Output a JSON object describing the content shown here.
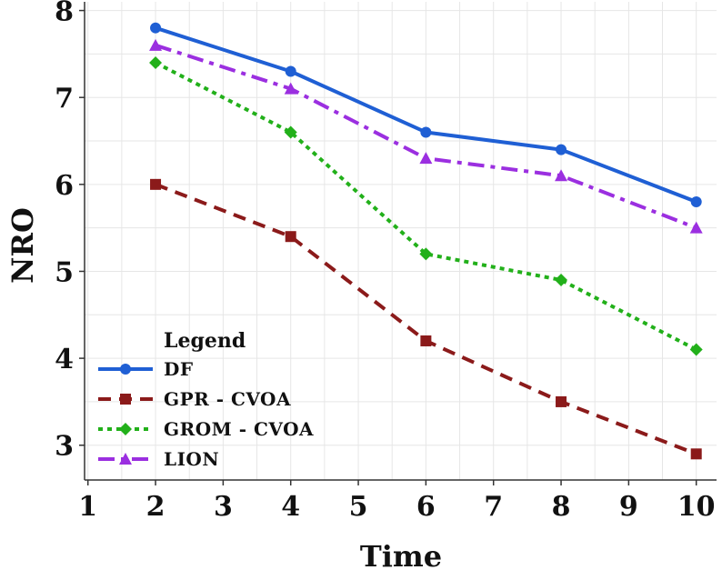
{
  "chart_data": {
    "type": "line",
    "title": "",
    "xlabel": "Time",
    "ylabel": "NRO",
    "xlim": [
      0.95,
      10.3
    ],
    "ylim": [
      2.6,
      8.1
    ],
    "x_ticks": [
      1,
      2,
      3,
      4,
      5,
      6,
      7,
      8,
      9,
      10
    ],
    "y_ticks": [
      3,
      4,
      5,
      6,
      7,
      8
    ],
    "x": [
      2,
      4,
      6,
      8,
      10
    ],
    "grid": true,
    "legend": {
      "title": "Legend",
      "position": "bottom-left"
    },
    "series": [
      {
        "name": "DF",
        "values": [
          7.8,
          7.3,
          6.6,
          6.4,
          5.8
        ],
        "color": "#1f5fd4",
        "marker": "circle",
        "dash": "solid"
      },
      {
        "name": "GPR - CVOA",
        "values": [
          6.0,
          5.4,
          4.2,
          3.5,
          2.9
        ],
        "color": "#8b1a1a",
        "marker": "square",
        "dash": "dashed"
      },
      {
        "name": "GROM - CVOA",
        "values": [
          7.4,
          6.6,
          5.2,
          4.9,
          4.1
        ],
        "color": "#22b01a",
        "marker": "diamond",
        "dash": "dotted"
      },
      {
        "name": "LION",
        "values": [
          7.6,
          7.1,
          6.3,
          6.1,
          5.5
        ],
        "color": "#9b2fe0",
        "marker": "triangle",
        "dash": "dashdot"
      }
    ]
  }
}
